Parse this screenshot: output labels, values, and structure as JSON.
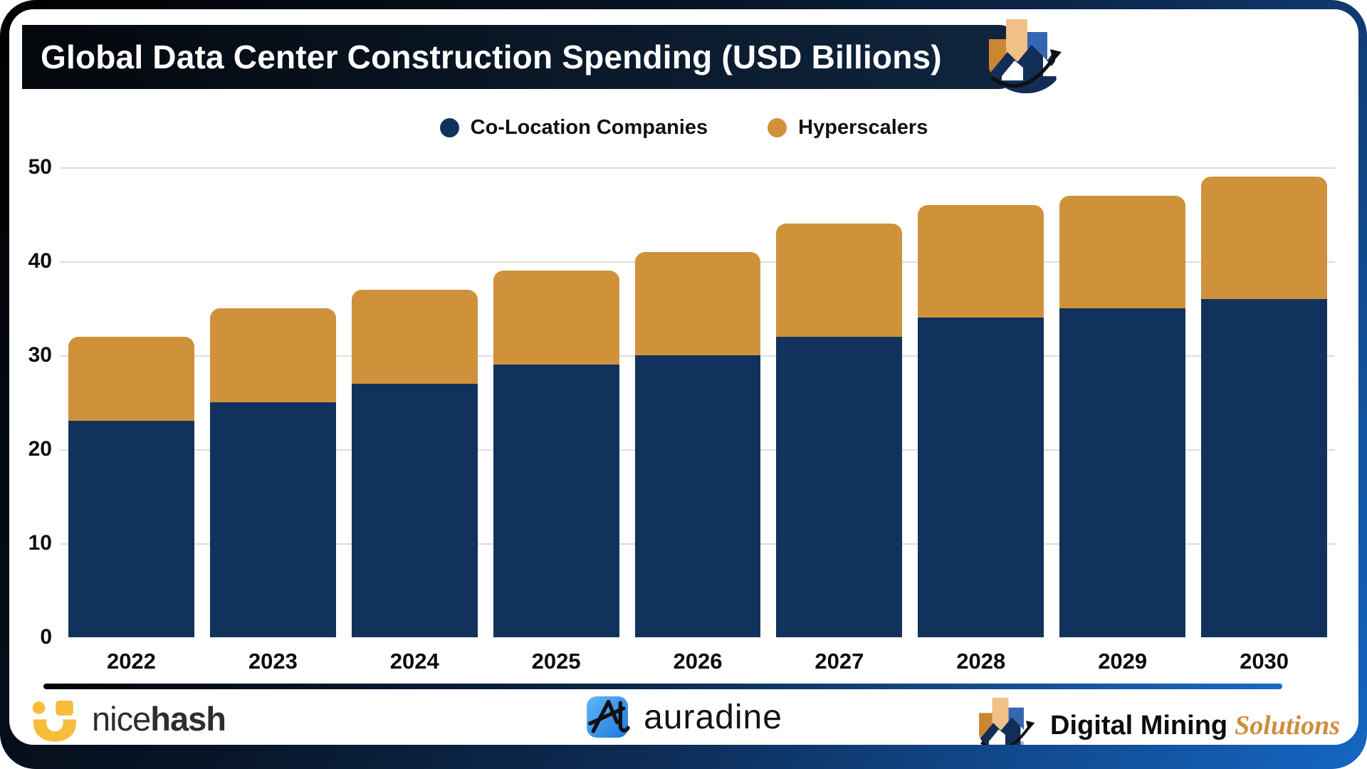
{
  "header": {
    "title": "Global Data Center Construction Spending (USD Billions)",
    "logo_icon": "growth-chart-arrow-icon"
  },
  "legend": {
    "items": [
      {
        "label": "Co-Location Companies",
        "color": "#11325C"
      },
      {
        "label": "Hyperscalers",
        "color": "#D0913B"
      }
    ]
  },
  "chart_data": {
    "type": "bar",
    "stacked": true,
    "title": "Global Data Center Construction Spending (USD Billions)",
    "categories": [
      "2022",
      "2023",
      "2024",
      "2025",
      "2026",
      "2027",
      "2028",
      "2029",
      "2030"
    ],
    "series": [
      {
        "name": "Co-Location Companies",
        "color": "#11325C",
        "values": [
          23,
          25,
          27,
          29,
          30,
          32,
          34,
          35,
          36
        ]
      },
      {
        "name": "Hyperscalers",
        "color": "#D0913B",
        "values": [
          9,
          10,
          10,
          10,
          11,
          12,
          12,
          12,
          13
        ]
      }
    ],
    "totals": [
      32,
      35,
      37,
      39,
      41,
      44,
      46,
      47,
      49
    ],
    "ylim": [
      0,
      50
    ],
    "yticks": [
      0,
      10,
      20,
      30,
      40,
      50
    ],
    "grid": true,
    "gridline_color": "#dddddd",
    "legend_position": "top",
    "xlabel": "",
    "ylabel": ""
  },
  "footer": {
    "nicehash": {
      "name_part1": "nice",
      "name_part2": "hash",
      "icon": "smiley-icon",
      "accent": "#F7BC3A"
    },
    "auradine": {
      "name": "auradine",
      "icon": "slashed-a-icon",
      "accent": "#2E86E0"
    },
    "dms": {
      "text_black": "Digital Mining",
      "text_gold": "Solutions",
      "icon": "growth-chart-arrow-icon",
      "gold": "#CE8E3B"
    }
  }
}
